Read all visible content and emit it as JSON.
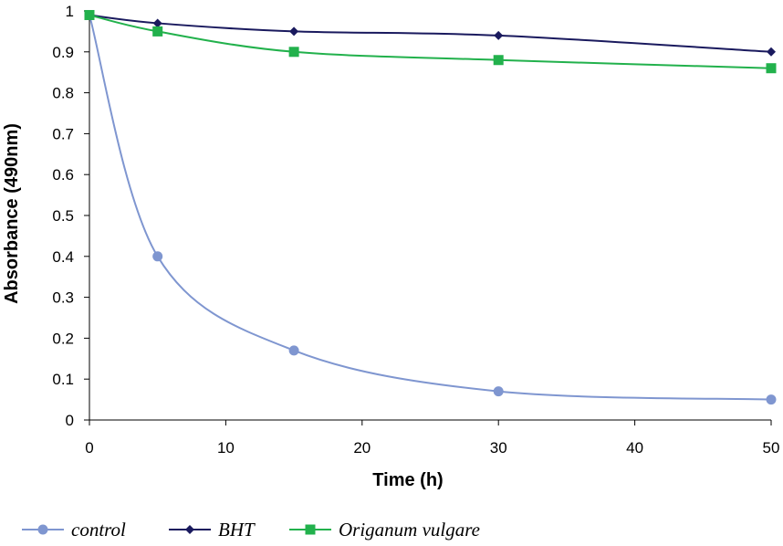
{
  "chart_data": {
    "type": "line",
    "title": "",
    "xlabel": "Time (h)",
    "ylabel": "Absorbance (490nm)",
    "xlim": [
      0,
      50
    ],
    "ylim": [
      0,
      1
    ],
    "x_ticks": [
      "0",
      "10",
      "20",
      "30",
      "40",
      "50"
    ],
    "y_ticks": [
      "0",
      "0.1",
      "0.2",
      "0.3",
      "0.4",
      "0.5",
      "0.6",
      "0.7",
      "0.8",
      "0.9",
      "1"
    ],
    "grid": false,
    "legend_position": "bottom",
    "series": [
      {
        "name": "control",
        "color": "#7f96d0",
        "marker": "circle",
        "x": [
          0,
          5,
          15,
          30,
          50
        ],
        "y": [
          0.99,
          0.4,
          0.17,
          0.07,
          0.05
        ]
      },
      {
        "name": "BHT",
        "color": "#1a1a5e",
        "marker": "diamond",
        "x": [
          0,
          5,
          15,
          30,
          50
        ],
        "y": [
          0.99,
          0.97,
          0.95,
          0.94,
          0.9
        ]
      },
      {
        "name": "Origanum vulgare",
        "color": "#22b14c",
        "marker": "square",
        "x": [
          0,
          5,
          15,
          30,
          50
        ],
        "y": [
          0.99,
          0.95,
          0.9,
          0.88,
          0.86
        ]
      }
    ]
  }
}
